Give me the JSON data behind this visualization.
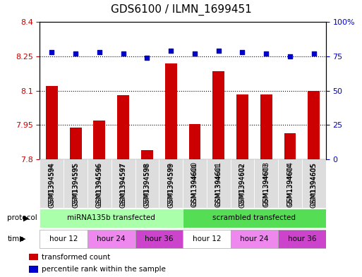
{
  "title": "GDS6100 / ILMN_1699451",
  "samples": [
    "GSM1394594",
    "GSM1394595",
    "GSM1394596",
    "GSM1394597",
    "GSM1394598",
    "GSM1394599",
    "GSM1394600",
    "GSM1394601",
    "GSM1394602",
    "GSM1394603",
    "GSM1394604",
    "GSM1394605"
  ],
  "bar_values": [
    8.12,
    7.94,
    7.97,
    8.08,
    7.84,
    8.22,
    7.955,
    8.185,
    8.085,
    8.085,
    7.915,
    8.1
  ],
  "percentile_values": [
    78,
    77,
    78,
    77,
    74,
    79,
    77,
    79,
    78,
    77,
    75,
    77
  ],
  "bar_color": "#cc0000",
  "dot_color": "#0000cc",
  "ylim_left": [
    7.8,
    8.4
  ],
  "ylim_right": [
    0,
    100
  ],
  "yticks_left": [
    7.8,
    7.95,
    8.1,
    8.25,
    8.4
  ],
  "ytick_labels_left": [
    "7.8",
    "7.95",
    "8.1",
    "8.25",
    "8.4"
  ],
  "yticks_right": [
    0,
    25,
    50,
    75,
    100
  ],
  "ytick_labels_right": [
    "0",
    "25",
    "50",
    "75",
    "100%"
  ],
  "hlines": [
    7.95,
    8.1,
    8.25
  ],
  "protocol_groups": [
    {
      "label": "miRNA135b transfected",
      "start": 0,
      "end": 6,
      "color": "#aaffaa"
    },
    {
      "label": "scrambled transfected",
      "start": 6,
      "end": 12,
      "color": "#55dd55"
    }
  ],
  "time_groups": [
    {
      "label": "hour 12",
      "start": 0,
      "end": 2,
      "color": "#ffffff"
    },
    {
      "label": "hour 24",
      "start": 2,
      "end": 4,
      "color": "#ee88ee"
    },
    {
      "label": "hour 36",
      "start": 4,
      "end": 6,
      "color": "#cc44cc"
    },
    {
      "label": "hour 12",
      "start": 6,
      "end": 8,
      "color": "#ffffff"
    },
    {
      "label": "hour 24",
      "start": 8,
      "end": 10,
      "color": "#ee88ee"
    },
    {
      "label": "hour 36",
      "start": 10,
      "end": 12,
      "color": "#cc44cc"
    }
  ],
  "legend_items": [
    {
      "label": "transformed count",
      "color": "#cc0000"
    },
    {
      "label": "percentile rank within the sample",
      "color": "#0000cc"
    }
  ],
  "bar_width": 0.5,
  "base_value": 7.8
}
